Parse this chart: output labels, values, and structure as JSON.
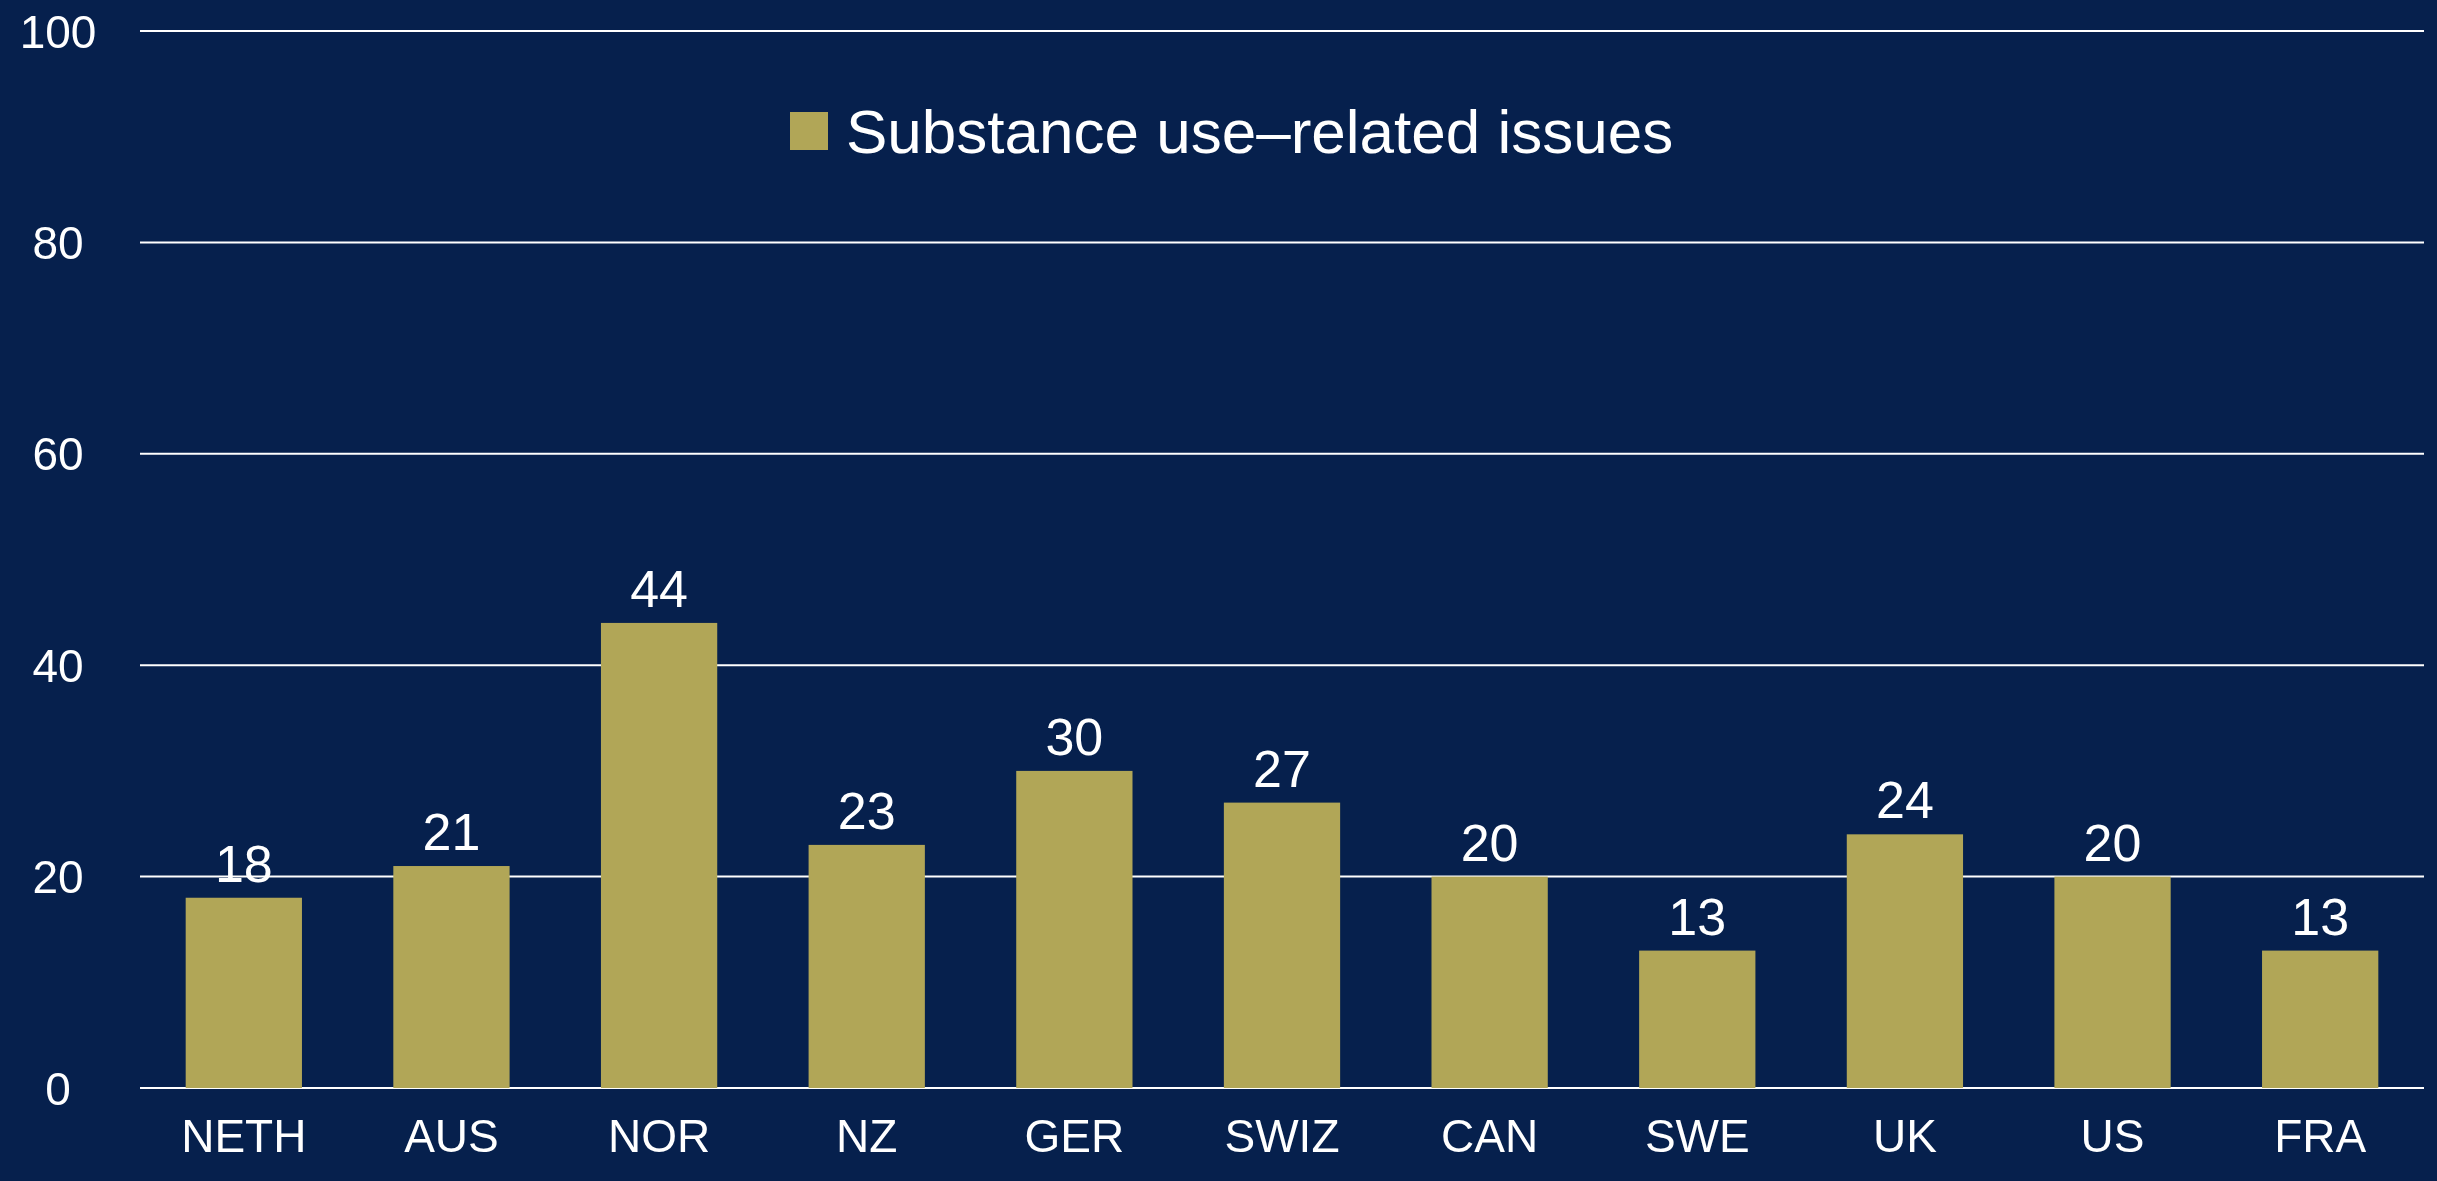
{
  "chart_data": {
    "type": "bar",
    "categories": [
      "NETH",
      "AUS",
      "NOR",
      "NZ",
      "GER",
      "SWIZ",
      "CAN",
      "SWE",
      "UK",
      "US",
      "FRA"
    ],
    "series": [
      {
        "name": "Substance use–related issues",
        "color": "#b1a657",
        "values": [
          18,
          21,
          44,
          23,
          30,
          27,
          20,
          13,
          24,
          20,
          13
        ]
      }
    ],
    "ylim": [
      0,
      100
    ],
    "yticks": [
      0,
      20,
      40,
      60,
      80,
      100
    ],
    "grid": "y",
    "legend": "top",
    "data_labels": true
  }
}
